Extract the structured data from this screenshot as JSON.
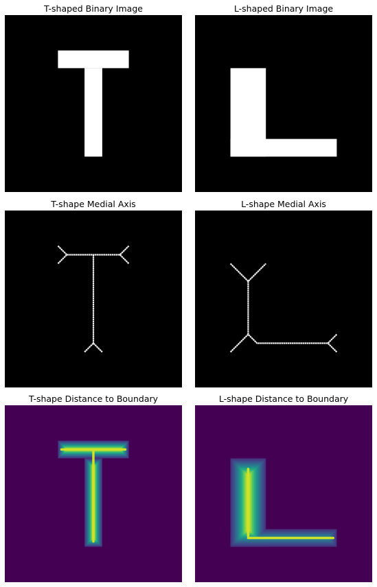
{
  "chart_data": [
    {
      "type": "image",
      "title": "T-shaped Binary Image",
      "grid_size": [
        100,
        100
      ],
      "colormap": "gray",
      "shape": "T",
      "rects": [
        [
          30,
          20,
          70,
          30
        ],
        [
          45,
          30,
          55,
          80
        ]
      ]
    },
    {
      "type": "image",
      "title": "L-shaped Binary Image",
      "grid_size": [
        100,
        100
      ],
      "colormap": "gray",
      "shape": "L",
      "rects": [
        [
          20,
          30,
          40,
          80
        ],
        [
          20,
          70,
          80,
          80
        ]
      ]
    },
    {
      "type": "image",
      "title": "T-shape Medial Axis",
      "grid_size": [
        100,
        100
      ],
      "colormap": "gray",
      "polylines": [
        [
          [
            30,
            20
          ],
          [
            35,
            25
          ],
          [
            50,
            25
          ],
          [
            65,
            25
          ],
          [
            70,
            20
          ]
        ],
        [
          [
            30,
            30
          ],
          [
            35,
            25
          ]
        ],
        [
          [
            65,
            25
          ],
          [
            70,
            30
          ]
        ],
        [
          [
            50,
            25
          ],
          [
            50,
            75
          ]
        ],
        [
          [
            45,
            80
          ],
          [
            50,
            75
          ],
          [
            55,
            80
          ]
        ]
      ]
    },
    {
      "type": "image",
      "title": "L-shape Medial Axis",
      "grid_size": [
        100,
        100
      ],
      "colormap": "gray",
      "polylines": [
        [
          [
            20,
            30
          ],
          [
            30,
            40
          ],
          [
            40,
            30
          ]
        ],
        [
          [
            30,
            40
          ],
          [
            30,
            70
          ]
        ],
        [
          [
            20,
            80
          ],
          [
            30,
            70
          ],
          [
            35,
            75
          ],
          [
            75,
            75
          ]
        ],
        [
          [
            80,
            70
          ],
          [
            75,
            75
          ],
          [
            80,
            80
          ]
        ]
      ]
    },
    {
      "type": "heatmap",
      "title": "T-shape Distance to Boundary",
      "grid_size": [
        100,
        100
      ],
      "colormap": "viridis",
      "background": "#440154",
      "shape": "T",
      "rects": [
        [
          30,
          20,
          70,
          30
        ],
        [
          45,
          30,
          55,
          80
        ]
      ],
      "medial_lines": [
        [
          [
            32,
            25
          ],
          [
            68,
            25
          ]
        ],
        [
          [
            50,
            25
          ],
          [
            50,
            77
          ]
        ]
      ],
      "max_distance": 5
    },
    {
      "type": "heatmap",
      "title": "L-shape Distance to Boundary",
      "grid_size": [
        100,
        100
      ],
      "colormap": "viridis",
      "background": "#440154",
      "shape": "L",
      "rects": [
        [
          20,
          30,
          40,
          80
        ],
        [
          20,
          70,
          80,
          80
        ]
      ],
      "medial_lines": [
        [
          [
            30,
            36
          ],
          [
            30,
            74
          ]
        ],
        [
          [
            30,
            75
          ],
          [
            78,
            75
          ]
        ]
      ],
      "max_distance": 10
    }
  ]
}
